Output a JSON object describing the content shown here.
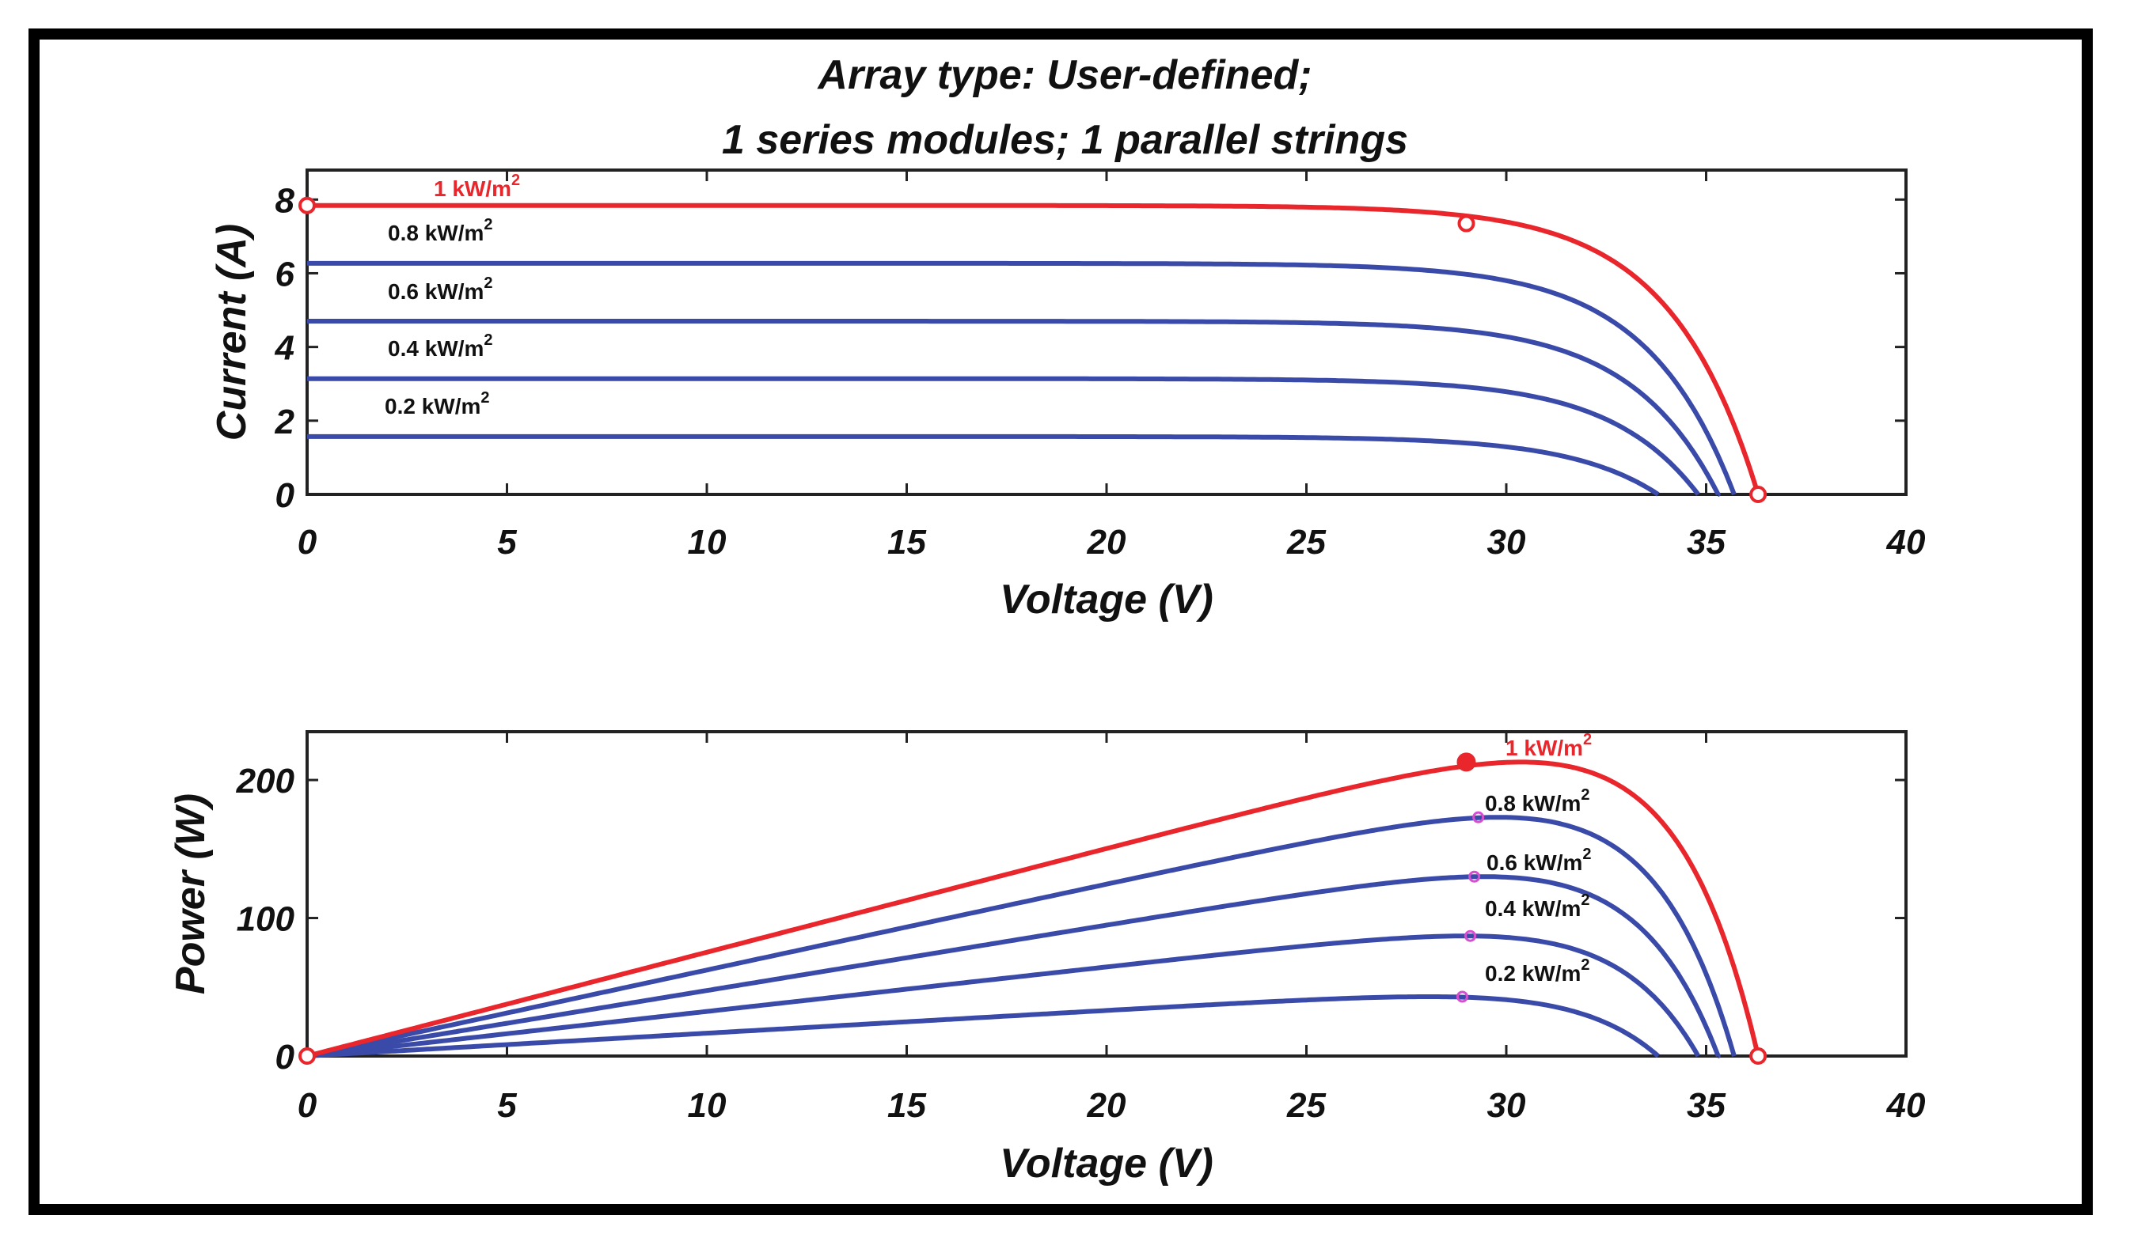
{
  "title_lines": [
    "Array type: User-defined;",
    "1 series modules; 1 parallel strings"
  ],
  "colors": {
    "highlight": "#e8262b",
    "series": "#3a4aa8",
    "mpp_marker": "#d64fd0",
    "axis": "#222222"
  },
  "chart_data": [
    {
      "id": "iv",
      "type": "line",
      "xlabel": "Voltage (V)",
      "ylabel": "Current (A)",
      "xlim": [
        0,
        40
      ],
      "ylim": [
        0,
        8.8
      ],
      "xticks": [
        0,
        5,
        10,
        15,
        20,
        25,
        30,
        35,
        40
      ],
      "yticks": [
        0,
        2,
        4,
        6,
        8
      ],
      "series": [
        {
          "name": "1 kW/m2",
          "label": "1 kW/m",
          "isc": 7.84,
          "voc": 36.3,
          "highlight": true
        },
        {
          "name": "0.8 kW/m2",
          "label": "0.8 kW/m",
          "isc": 6.27,
          "voc": 35.7
        },
        {
          "name": "0.6 kW/m2",
          "label": "0.6 kW/m",
          "isc": 4.7,
          "voc": 35.3
        },
        {
          "name": "0.4 kW/m2",
          "label": "0.4 kW/m",
          "isc": 3.14,
          "voc": 34.8
        },
        {
          "name": "0.2 kW/m2",
          "label": "0.2 kW/m",
          "isc": 1.57,
          "voc": 33.8
        }
      ],
      "markers": [
        {
          "x": 0,
          "y": 7.84
        },
        {
          "x": 29.0,
          "y": 7.35
        },
        {
          "x": 36.3,
          "y": 0
        }
      ]
    },
    {
      "id": "pv",
      "type": "line",
      "xlabel": "Voltage (V)",
      "ylabel": "Power (W)",
      "xlim": [
        0,
        40
      ],
      "ylim": [
        0,
        235
      ],
      "xticks": [
        0,
        5,
        10,
        15,
        20,
        25,
        30,
        35,
        40
      ],
      "yticks": [
        0,
        100,
        200
      ],
      "series": [
        {
          "name": "1 kW/m2",
          "label": "1 kW/m",
          "pmax": 213,
          "vmp": 29.0,
          "highlight": true
        },
        {
          "name": "0.8 kW/m2",
          "label": "0.8 kW/m",
          "pmax": 173,
          "vmp": 29.3
        },
        {
          "name": "0.6 kW/m2",
          "label": "0.6 kW/m",
          "pmax": 130,
          "vmp": 29.2
        },
        {
          "name": "0.4 kW/m2",
          "label": "0.4 kW/m",
          "pmax": 87,
          "vmp": 29.1
        },
        {
          "name": "0.2 kW/m2",
          "label": "0.2 kW/m",
          "pmax": 43,
          "vmp": 28.9
        }
      ],
      "markers": [
        {
          "x": 0,
          "y": 0
        },
        {
          "x": 29.0,
          "y": 213
        },
        {
          "x": 36.3,
          "y": 0
        }
      ]
    }
  ],
  "superscript": "2"
}
